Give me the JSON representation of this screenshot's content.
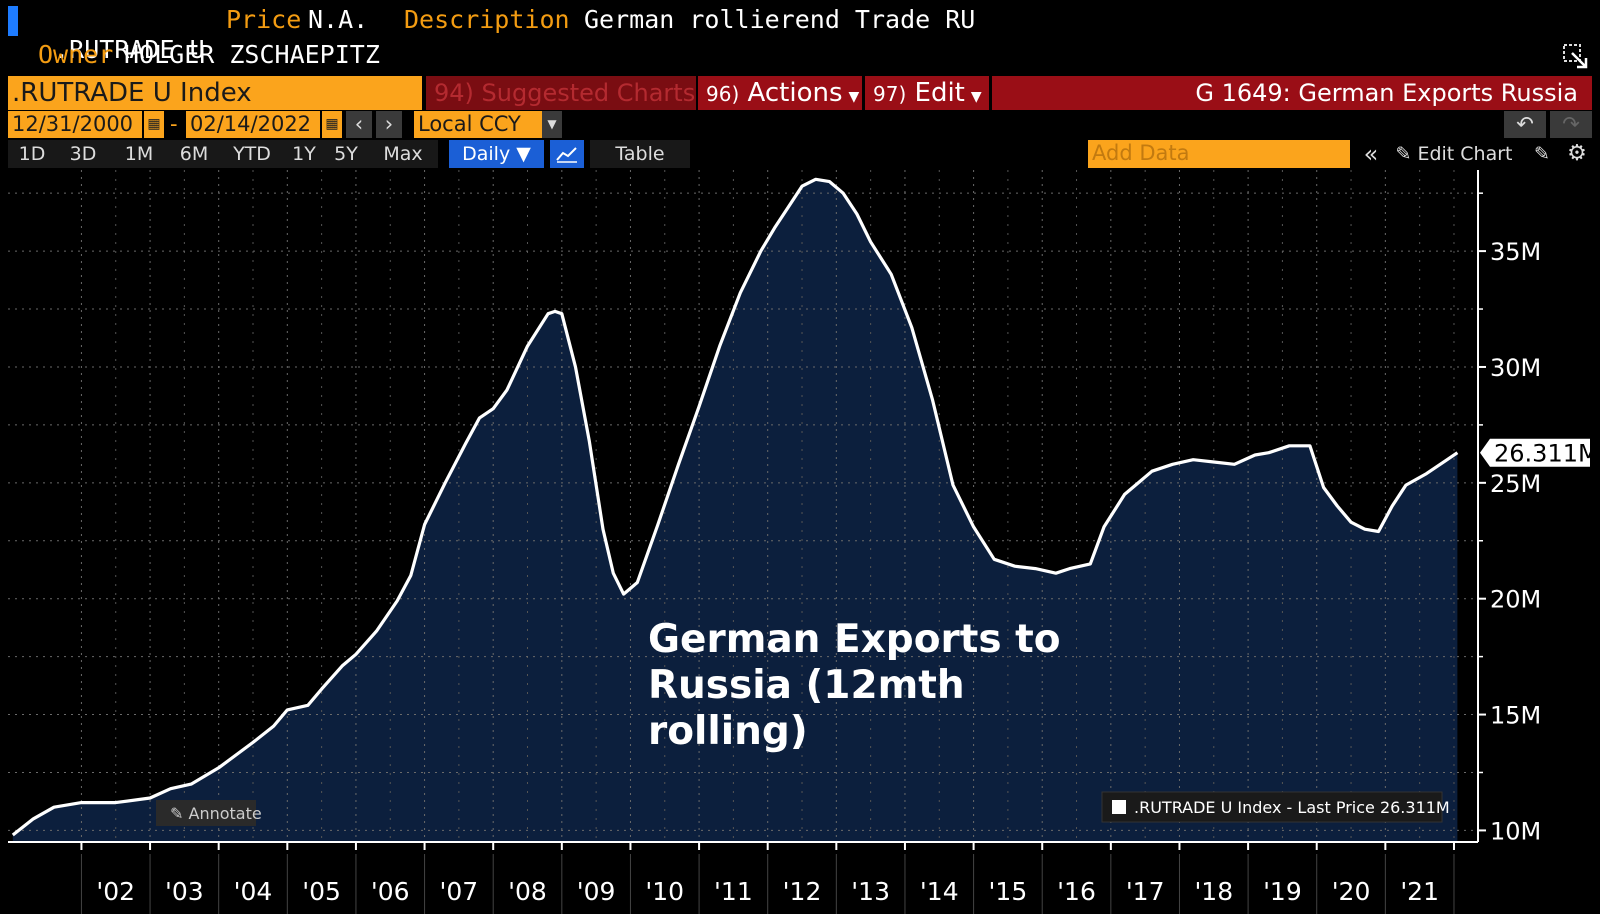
{
  "header": {
    "ticker": ".RUTRADE U",
    "price_label": "Price",
    "price_value": "N.A.",
    "description_label": "Description",
    "description_value": "German rollierend Trade RU",
    "owner_label": "Owner",
    "owner_value": "HOLGER ZSCHAEPITZ"
  },
  "toolbar": {
    "security_value": ".RUTRADE U Index",
    "suggested_label": "94) Suggested Charts",
    "actions_num": "96)",
    "actions_label": "Actions",
    "edit_num": "97)",
    "edit_label": "Edit",
    "chart_title": "G 1649: German Exports Russia",
    "start_date": "12/31/2000",
    "end_date": "02/14/2022",
    "date_sep": "-",
    "currency": "Local CCY",
    "periods": [
      "1D",
      "3D",
      "1M",
      "6M",
      "YTD",
      "1Y",
      "5Y",
      "Max"
    ],
    "frequency": "Daily ▼",
    "table_label": "Table",
    "add_data_placeholder": "Add Data",
    "edit_chart_label": "Edit Chart",
    "annotate_label": "Annotate"
  },
  "colors": {
    "fill": "#0c1f3d",
    "line": "#ffffff",
    "accent": "#fba41c",
    "header_red": "#9a0e16"
  },
  "chart_data": {
    "type": "area",
    "title": "German Exports to Russia (12mth rolling)",
    "legend": ".RUTRADE U Index - Last Price 26.311M",
    "last_value_label": "26.311M",
    "ylim": [
      9.5,
      38.5
    ],
    "y_ticks": [
      10,
      15,
      20,
      25,
      30,
      35
    ],
    "y_tick_labels": [
      "10M",
      "15M",
      "20M",
      "25M",
      "30M",
      "35M"
    ],
    "x_tick_labels": [
      "'02",
      "'03",
      "'04",
      "'05",
      "'06",
      "'07",
      "'08",
      "'09",
      "'10",
      "'11",
      "'12",
      "'13",
      "'14",
      "'15",
      "'16",
      "'17",
      "'18",
      "'19",
      "'20",
      "'21"
    ],
    "x_tick_years": [
      2002,
      2003,
      2004,
      2005,
      2006,
      2007,
      2008,
      2009,
      2010,
      2011,
      2012,
      2013,
      2014,
      2015,
      2016,
      2017,
      2018,
      2019,
      2020,
      2021
    ],
    "units": "M",
    "series": [
      {
        "x": [
          2001.0,
          2001.3,
          2001.6,
          2002.0,
          2002.5,
          2003.0,
          2003.3,
          2003.6,
          2004.0,
          2004.5,
          2004.8,
          2005.0,
          2005.3,
          2005.5,
          2005.8,
          2006.0,
          2006.3,
          2006.6,
          2006.8,
          2007.0,
          2007.3,
          2007.6,
          2007.8,
          2008.0,
          2008.2,
          2008.5,
          2008.8,
          2008.9,
          2009.0,
          2009.2,
          2009.4,
          2009.6,
          2009.75,
          2009.9,
          2010.1,
          2010.4,
          2010.7,
          2011.0,
          2011.3,
          2011.6,
          2011.9,
          2012.1,
          2012.3,
          2012.5,
          2012.7,
          2012.9,
          2013.1,
          2013.3,
          2013.5,
          2013.8,
          2014.1,
          2014.4,
          2014.7,
          2015.0,
          2015.3,
          2015.6,
          2015.9,
          2016.2,
          2016.4,
          2016.7,
          2016.9,
          2017.2,
          2017.6,
          2017.9,
          2018.2,
          2018.5,
          2018.8,
          2019.1,
          2019.3,
          2019.6,
          2019.9,
          2020.1,
          2020.3,
          2020.5,
          2020.7,
          2020.9,
          2021.1,
          2021.3,
          2021.6,
          2021.9,
          2022.05
        ],
        "y": [
          9.8,
          10.5,
          11.0,
          11.2,
          11.2,
          11.4,
          11.8,
          12.0,
          12.7,
          13.8,
          14.5,
          15.2,
          15.4,
          16.1,
          17.1,
          17.6,
          18.6,
          19.9,
          21.0,
          23.2,
          25.0,
          26.7,
          27.8,
          28.2,
          29.0,
          30.9,
          32.3,
          32.4,
          32.3,
          30.0,
          26.8,
          23.0,
          21.1,
          20.2,
          20.7,
          23.2,
          25.8,
          28.3,
          30.9,
          33.2,
          35.0,
          36.0,
          36.9,
          37.8,
          38.1,
          38.0,
          37.5,
          36.6,
          35.4,
          34.0,
          31.7,
          28.6,
          24.9,
          23.1,
          21.7,
          21.4,
          21.3,
          21.1,
          21.3,
          21.5,
          23.1,
          24.5,
          25.5,
          25.8,
          26.0,
          25.9,
          25.8,
          26.2,
          26.3,
          26.6,
          26.6,
          24.8,
          24.0,
          23.3,
          23.0,
          22.9,
          24.0,
          24.9,
          25.4,
          26.0,
          26.3
        ]
      }
    ]
  }
}
